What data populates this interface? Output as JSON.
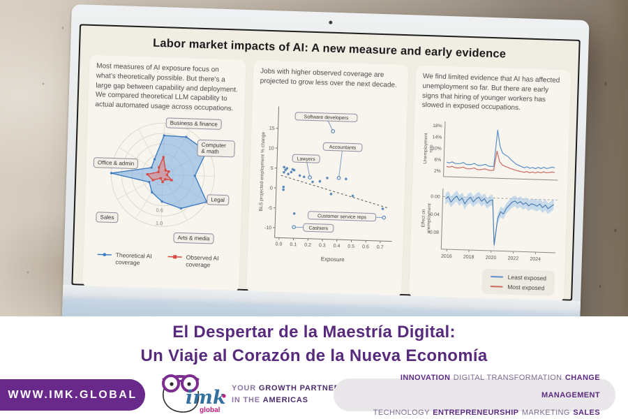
{
  "slide": {
    "title": "Labor market impacts of AI: A new measure and early evidence",
    "panels": {
      "left_text": "Most measures of AI exposure focus on what's theoretically possible. But there's a large gap between capability and deployment. We compared theoretical LLM capability to actual automated usage across occupations.",
      "middle_text": "Jobs with higher observed coverage are projected to grow less over the next decade.",
      "right_text": "We find limited evidence that AI has affected unemployment so far. But there are early signs that hiring of younger workers has slowed in exposed occupations."
    }
  },
  "chart_data": [
    {
      "type": "line",
      "subtype": "radar",
      "axis_labels": [
        "Business & finance",
        "Computer & math",
        "Legal",
        "Arts & media",
        "Sales",
        "Office & admin"
      ],
      "rings": [
        0.2,
        0.4,
        0.6,
        0.8,
        1.0
      ],
      "ring_labels": [
        "0.6",
        "1.0"
      ],
      "series": [
        {
          "name": "Theoretical AI coverage",
          "color": "#3f7cc0",
          "fill": "rgba(120,170,225,0.55)",
          "values": [
            0.76,
            0.86,
            0.96,
            0.62,
            1.0,
            0.74,
            0.52,
            0.4,
            0.3,
            1.0,
            0.26,
            0.34
          ]
        },
        {
          "name": "Observed AI coverage",
          "color": "#d64a41",
          "fill": "rgba(235,120,115,0.5)",
          "values": [
            0.34,
            0.1,
            0.13,
            0.08,
            0.2,
            0.1,
            0.14,
            0.08,
            0.22,
            0.3,
            0.1,
            0.16
          ]
        }
      ]
    },
    {
      "type": "scatter",
      "xlabel": "Exposure",
      "ylabel": "BLS projected employment % change",
      "xlim": [
        -0.03,
        0.78
      ],
      "ylim": [
        -12.5,
        20.5
      ],
      "xticks": [
        0.0,
        0.1,
        0.2,
        0.3,
        0.4,
        0.5,
        0.6,
        0.7
      ],
      "xtick_labels": [
        "0.0",
        "0.1",
        "0.2",
        "0.3",
        "0.4",
        "0.5",
        "0.6",
        "0.7"
      ],
      "yticks": [
        15,
        10,
        5,
        0,
        -5,
        -10
      ],
      "point_color": "#4d7fb5",
      "points": [
        [
          0.02,
          5.3
        ],
        [
          0.03,
          4.6
        ],
        [
          0.02,
          4.0
        ],
        [
          0.04,
          5.0
        ],
        [
          0.05,
          3.6
        ],
        [
          0.07,
          4.1
        ],
        [
          0.08,
          4.8
        ],
        [
          0.09,
          4.6
        ],
        [
          0.02,
          0.3
        ],
        [
          0.02,
          -0.4
        ],
        [
          0.13,
          3.3
        ],
        [
          0.16,
          3.0
        ],
        [
          0.22,
          1.8
        ],
        [
          0.27,
          2.0
        ],
        [
          0.32,
          2.9
        ],
        [
          0.35,
          -1.1
        ],
        [
          0.45,
          2.8
        ],
        [
          0.5,
          -1.4
        ],
        [
          0.1,
          -6.3
        ],
        [
          0.71,
          -4.4
        ]
      ],
      "labeled_points": [
        {
          "name": "Software developers",
          "x": 0.35,
          "y": 14.7,
          "lx": 0.3,
          "ly": 18.2
        },
        {
          "name": "Accountants",
          "x": 0.4,
          "y": 3.0,
          "lx": 0.42,
          "ly": 10.8
        },
        {
          "name": "Lawyers",
          "x": 0.2,
          "y": 2.9,
          "lx": 0.17,
          "ly": 7.6
        },
        {
          "name": "Customer service reps",
          "x": 0.72,
          "y": -6.6,
          "lx": 0.43,
          "ly": -6.6
        },
        {
          "name": "Cashiers",
          "x": 0.1,
          "y": -9.7,
          "lx": 0.27,
          "ly": -9.7
        }
      ],
      "trendline": {
        "x1": 0.0,
        "y1": 3.2,
        "x2": 0.75,
        "y2": -4.2
      }
    },
    {
      "type": "line",
      "ylabel": [
        "Unemployment",
        "rate"
      ],
      "yticks": [
        2,
        6,
        10,
        14,
        18
      ],
      "ytick_labels": [
        "2%",
        "6%",
        "10%",
        "14%",
        "18%"
      ],
      "xlim": [
        2015.5,
        2025.8
      ],
      "ylim": [
        0,
        19.5
      ],
      "x_start": 2015.75,
      "x_step": 0.25,
      "series": [
        {
          "name": "Least exposed",
          "color": "#5b8fc9",
          "values": [
            5.1,
            4.9,
            5.3,
            4.8,
            4.7,
            4.8,
            5.2,
            4.6,
            4.5,
            4.6,
            5.0,
            4.4,
            4.3,
            4.5,
            4.8,
            4.2,
            4.1,
            4.2,
            17.0,
            11.5,
            9.0,
            8.3,
            7.8,
            6.8,
            6.0,
            5.2,
            4.8,
            4.4,
            4.0,
            4.4,
            3.9,
            4.2,
            3.8,
            4.3,
            3.9,
            4.4,
            4.0,
            4.2,
            4.5,
            4.4
          ]
        },
        {
          "name": "Most exposed",
          "color": "#cf6a60",
          "values": [
            3.6,
            3.4,
            3.7,
            3.3,
            3.2,
            3.3,
            3.6,
            3.1,
            3.0,
            3.1,
            3.4,
            2.9,
            2.8,
            3.0,
            3.2,
            2.8,
            2.7,
            2.8,
            9.6,
            6.0,
            4.8,
            4.3,
            4.0,
            3.6,
            3.3,
            3.0,
            2.8,
            2.6,
            2.4,
            2.7,
            2.3,
            2.6,
            2.3,
            2.7,
            2.4,
            2.8,
            2.5,
            2.6,
            2.8,
            2.7
          ]
        }
      ]
    },
    {
      "type": "line",
      "ylabel": [
        "Effect on",
        "unemployment"
      ],
      "yticks": [
        0,
        -0.04,
        -0.08
      ],
      "ytick_labels": [
        "0.00",
        "-0.04",
        "-0.08"
      ],
      "xticks": [
        2016,
        2018,
        2020,
        2022,
        2024
      ],
      "xtick_labels": [
        "2016",
        "2018",
        "2020",
        "2022",
        "2024"
      ],
      "xlim": [
        2015.5,
        2025.8
      ],
      "ylim": [
        -0.118,
        0.018
      ],
      "x_start": 2015.75,
      "x_step": 0.25,
      "zero_line": true,
      "band_halfwidth": 0.012,
      "series": [
        {
          "name": "Least exposed",
          "color": "#4d7fb5",
          "band_color": "#aecbe6",
          "values": [
            -0.005,
            0,
            -0.012,
            -0.004,
            0.002,
            -0.008,
            -0.002,
            -0.015,
            -0.005,
            0,
            -0.01,
            -0.003,
            0.001,
            -0.008,
            -0.002,
            -0.012,
            -0.006,
            -0.004,
            -0.105,
            -0.045,
            -0.03,
            -0.035,
            -0.022,
            -0.015,
            -0.008,
            -0.005,
            -0.01,
            -0.006,
            -0.012,
            -0.008,
            -0.015,
            -0.01,
            -0.012,
            -0.015,
            -0.01,
            -0.018,
            -0.012,
            -0.02,
            -0.015,
            -0.01
          ]
        }
      ],
      "legend": [
        "Least exposed",
        "Most exposed"
      ],
      "legend_colors": [
        "#5b8fc9",
        "#cf6a60"
      ]
    }
  ],
  "banner": {
    "line1": "El Despertar de la Maestría Digital:",
    "line2": "Un Viaje al Corazón de la Nueva Economía"
  },
  "footer": {
    "url": "WWW.IMK.GLOBAL",
    "logo": {
      "imk": "imk",
      "global": "global"
    },
    "tagline": {
      "l1a": "YOUR",
      "l1b": "GROWTH PARTNER",
      "l2a": "IN THE",
      "l2b": "AMERICAS"
    },
    "services": {
      "s1": "INNOVATION",
      "s2": "DIGITAL TRANSFORMATION",
      "s3": "CHANGE MANAGEMENT",
      "s4": "TECHNOLOGY",
      "s5": "ENTREPRENEURSHIP",
      "s6": "MARKETING",
      "s7": "SALES"
    }
  }
}
